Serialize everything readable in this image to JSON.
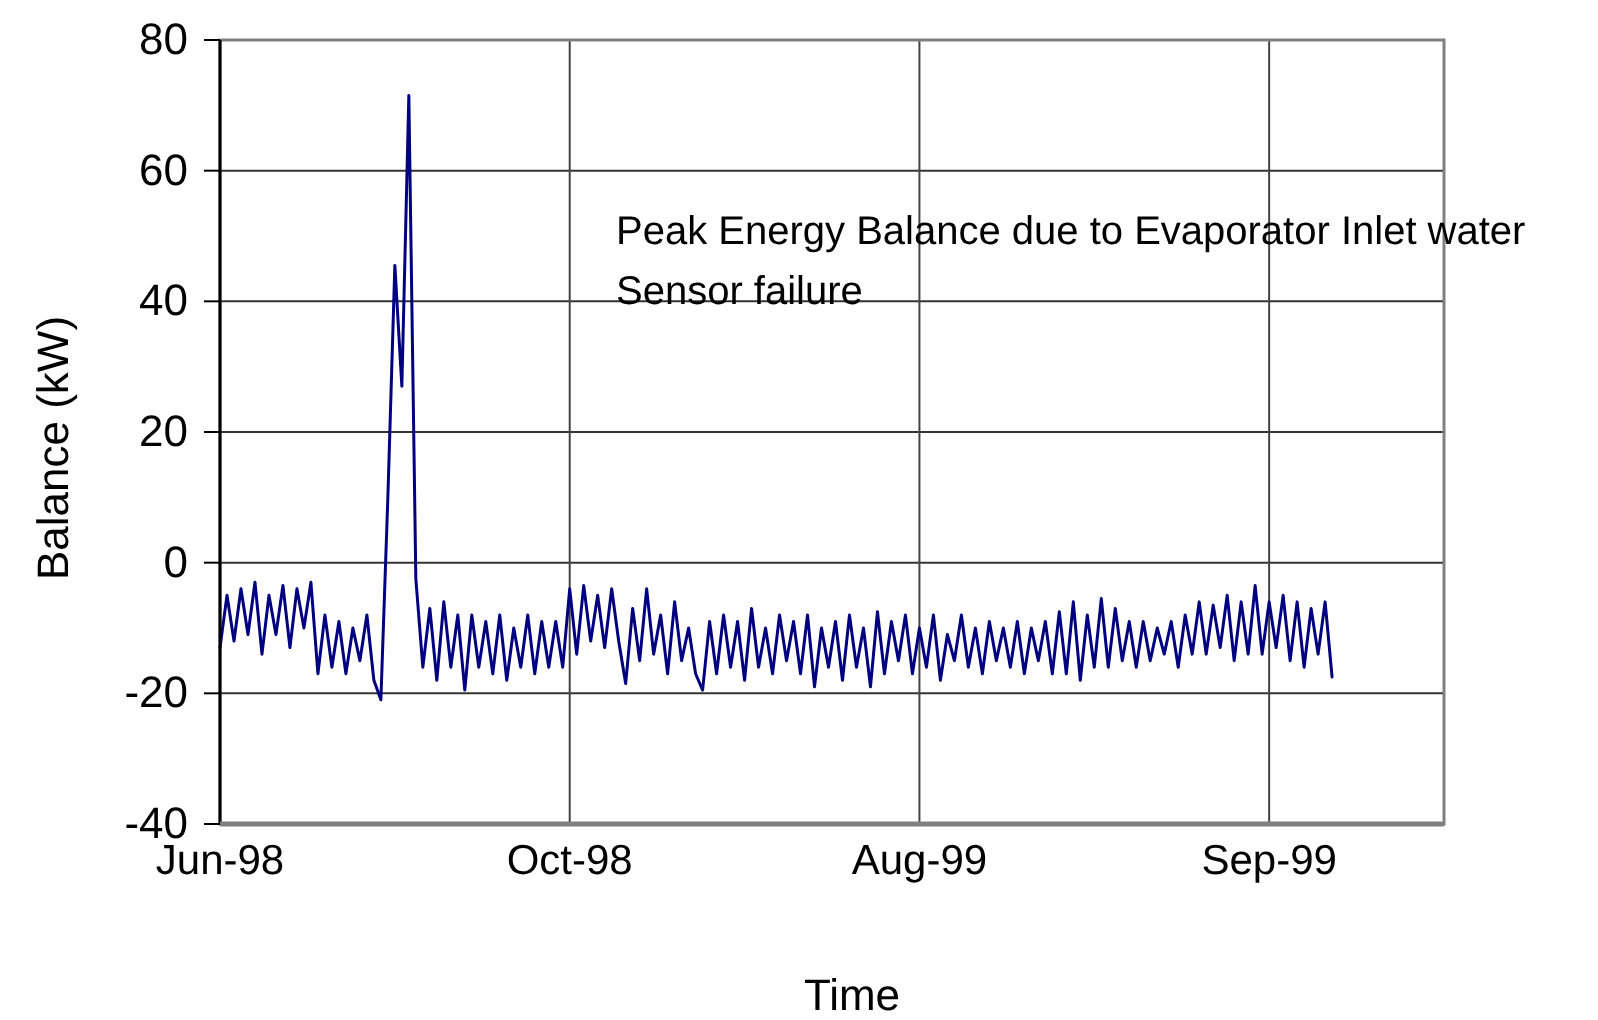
{
  "chart_data": {
    "type": "line",
    "xlabel": "Time",
    "ylabel": "Balance (kW)",
    "annotations": [
      "Peak Energy Balance due to Evaporator Inlet water Sensor failure"
    ],
    "categories": [
      "Jun-98",
      null,
      null,
      null,
      null,
      null,
      null,
      null,
      null,
      null,
      null,
      null,
      null,
      null,
      null,
      null,
      null,
      null,
      null,
      null,
      null,
      null,
      null,
      null,
      null,
      null,
      null,
      null,
      null,
      null,
      null,
      null,
      null,
      null,
      null,
      null,
      null,
      null,
      null,
      null,
      null,
      null,
      null,
      null,
      null,
      null,
      null,
      null,
      null,
      null,
      "Oct-98",
      null,
      null,
      null,
      null,
      null,
      null,
      null,
      null,
      null,
      null,
      null,
      null,
      null,
      null,
      null,
      null,
      null,
      null,
      null,
      null,
      null,
      null,
      null,
      null,
      null,
      null,
      null,
      null,
      null,
      null,
      null,
      null,
      null,
      null,
      null,
      null,
      null,
      null,
      null,
      null,
      null,
      null,
      null,
      null,
      null,
      null,
      null,
      null,
      null,
      "Aug-99",
      null,
      null,
      null,
      null,
      null,
      null,
      null,
      null,
      null,
      null,
      null,
      null,
      null,
      null,
      null,
      null,
      null,
      null,
      null,
      null,
      null,
      null,
      null,
      null,
      null,
      null,
      null,
      null,
      null,
      null,
      null,
      null,
      null,
      null,
      null,
      null,
      null,
      null,
      null,
      null,
      null,
      null,
      null,
      null,
      null,
      null,
      null,
      null,
      null,
      "Sep-99",
      null,
      null,
      null,
      null,
      null,
      null,
      null,
      null,
      null,
      null,
      null,
      null,
      null,
      null,
      null,
      null,
      null,
      null,
      null,
      null,
      null,
      null,
      null,
      null,
      null
    ],
    "series": [
      {
        "color": "#000080",
        "values": [
          -13,
          -5,
          -12,
          -4,
          -11,
          -3,
          -14,
          -5,
          -11,
          -3.5,
          -13,
          -4,
          -10,
          -3,
          -17,
          -8,
          -16,
          -9,
          -17,
          -10,
          -15,
          -8,
          -18,
          -21,
          10,
          45.5,
          27,
          71.5,
          -2.5,
          -16,
          -7,
          -18,
          -6,
          -16,
          -8,
          -19.5,
          -8,
          -16,
          -9,
          -17,
          -8,
          -18,
          -10,
          -16,
          -8,
          -17,
          -9,
          -16,
          -9,
          -16,
          -4,
          -14,
          -3.5,
          -12,
          -5,
          -13,
          -4,
          -12,
          -18.5,
          -7,
          -15,
          -4,
          -14,
          -8,
          -17,
          -6,
          -15,
          -10,
          -17,
          -19.5,
          -9,
          -17,
          -8,
          -16,
          -9,
          -18,
          -7,
          -16,
          -10,
          -17,
          -8,
          -15,
          -9,
          -17,
          -8,
          -19,
          -10,
          -16,
          -9,
          -18,
          -8,
          -16,
          -10,
          -19,
          -7.5,
          -17,
          -9,
          -15,
          -8,
          -17,
          -10,
          -16,
          -8,
          -18,
          -11,
          -15,
          -8,
          -16,
          -10,
          -17,
          -9,
          -15,
          -10,
          -16,
          -9,
          -17,
          -10,
          -15,
          -9,
          -17,
          -7.5,
          -17,
          -6,
          -18,
          -8,
          -16,
          -5.5,
          -16,
          -7,
          -15,
          -9,
          -16,
          -9,
          -15,
          -10,
          -14,
          -9,
          -16,
          -8,
          -14,
          -6,
          -14,
          -6.5,
          -13,
          -5,
          -15,
          -6,
          -14,
          -3.5,
          -14,
          -6,
          -13,
          -5,
          -15,
          -6,
          -16,
          -7,
          -14,
          -6,
          -17.5,
          null,
          null,
          null,
          null,
          null,
          null,
          null,
          null,
          null,
          null,
          null,
          null,
          null,
          null,
          null,
          null
        ]
      }
    ],
    "ylim": [
      -40,
      80
    ],
    "yticks": [
      -40,
      -20,
      0,
      20,
      40,
      60,
      80
    ],
    "grid": true
  }
}
